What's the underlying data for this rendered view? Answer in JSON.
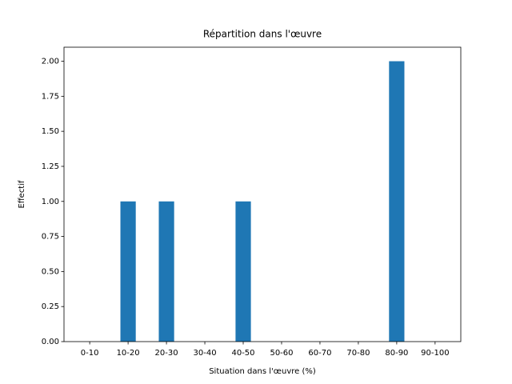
{
  "chart_data": {
    "type": "bar",
    "title": "Répartition dans l'œuvre",
    "x_label": "Situation dans l'œuvre (%)",
    "y_label": "Effectif",
    "categories": [
      "0-10",
      "10-20",
      "20-30",
      "30-40",
      "40-50",
      "50-60",
      "60-70",
      "70-80",
      "80-90",
      "90-100"
    ],
    "values": [
      0,
      1,
      1,
      0,
      1,
      0,
      0,
      0,
      2,
      0
    ],
    "color": "#1f77b4",
    "ylim": [
      0,
      2.1
    ],
    "yticks": [
      {
        "value": 0,
        "label": "0.00"
      },
      {
        "value": 0.25,
        "label": "0.25"
      },
      {
        "value": 0.5,
        "label": "0.50"
      },
      {
        "value": 0.75,
        "label": "0.75"
      },
      {
        "value": 1,
        "label": "1.00"
      },
      {
        "value": 1.25,
        "label": "1.25"
      },
      {
        "value": 1.5,
        "label": "1.50"
      },
      {
        "value": 1.75,
        "label": "1.75"
      },
      {
        "value": 2,
        "label": "2.00"
      }
    ],
    "grid": false
  }
}
